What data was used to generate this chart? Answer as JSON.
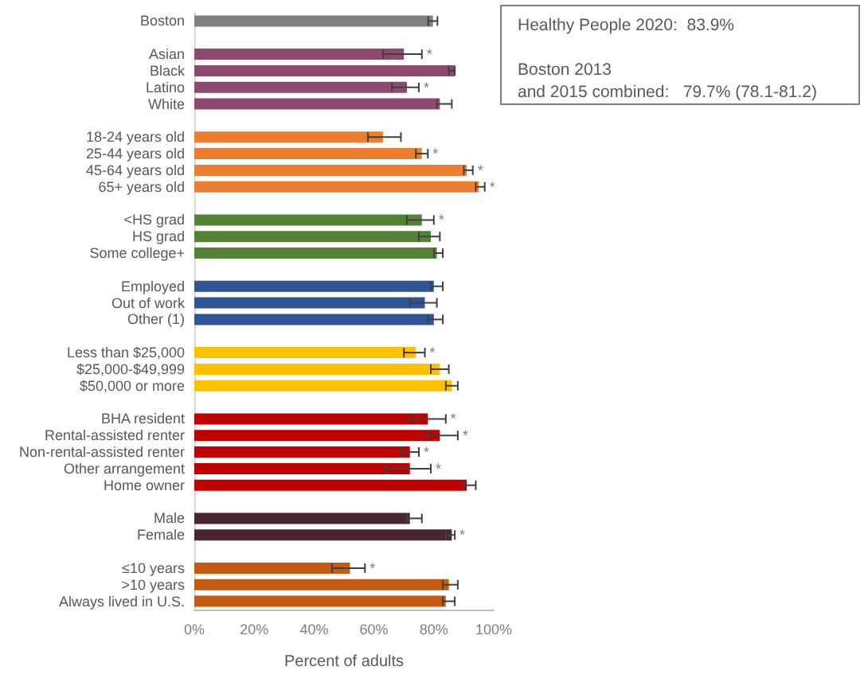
{
  "chart_data": {
    "type": "bar",
    "orientation": "horizontal",
    "xlabel": "Percent of adults",
    "categories": [
      "Boston",
      null,
      "Asian",
      "Black",
      "Latino",
      "White",
      null,
      "18-24 years old",
      "25-44 years old",
      "45-64 years old",
      "65+ years old",
      null,
      "<HS grad",
      "HS grad",
      "Some college+",
      null,
      "Employed",
      "Out of work",
      "Other (1)",
      null,
      "Less than $25,000",
      "$25,000-$49,999",
      "$50,000 or more",
      null,
      "BHA resident",
      "Rental-assisted renter",
      "Non-rental-assisted renter",
      "Other arrangement",
      "Home owner",
      null,
      "Male",
      "Female",
      null,
      "≤10 years",
      ">10 years",
      "Always lived in U.S."
    ],
    "values": [
      79.7,
      null,
      70,
      87,
      71,
      82,
      null,
      63,
      76,
      91,
      95,
      null,
      76,
      79,
      81,
      null,
      80,
      77,
      80,
      null,
      74,
      82,
      86,
      null,
      78,
      82,
      72,
      72,
      91,
      null,
      72,
      86,
      null,
      52,
      85,
      84
    ],
    "errors": [
      [
        78.1,
        81.2
      ],
      null,
      [
        63,
        76
      ],
      [
        85,
        87
      ],
      [
        66,
        75
      ],
      [
        81,
        86
      ],
      null,
      [
        58,
        69
      ],
      [
        74,
        78
      ],
      [
        90,
        93
      ],
      [
        94,
        97
      ],
      null,
      [
        71,
        80
      ],
      [
        75,
        82
      ],
      [
        80,
        83
      ],
      null,
      [
        79,
        83
      ],
      [
        72,
        81
      ],
      [
        78,
        83
      ],
      null,
      [
        70,
        77
      ],
      [
        79,
        85
      ],
      [
        84,
        88
      ],
      null,
      [
        72,
        84
      ],
      [
        78,
        88
      ],
      [
        69,
        75
      ],
      [
        64,
        79
      ],
      [
        90,
        94
      ],
      null,
      [
        71,
        76
      ],
      [
        84,
        87
      ],
      null,
      [
        46,
        57
      ],
      [
        83,
        88
      ],
      [
        83,
        87
      ]
    ],
    "colors": [
      "#7f7f7f",
      null,
      "#8e4a6e",
      "#8e4a6e",
      "#8e4a6e",
      "#8e4a6e",
      null,
      "#ed7d31",
      "#ed7d31",
      "#ed7d31",
      "#ed7d31",
      null,
      "#548235",
      "#548235",
      "#548235",
      null,
      "#2f5597",
      "#2f5597",
      "#2f5597",
      null,
      "#ffc000",
      "#ffc000",
      "#ffc000",
      null,
      "#c00000",
      "#c00000",
      "#c00000",
      "#c00000",
      "#c00000",
      null,
      "#4a2533",
      "#4a2533",
      null,
      "#c55a11",
      "#c55a11",
      "#c55a11"
    ],
    "xlim": [
      0,
      100
    ],
    "xticks": [
      {
        "value": 0,
        "label": "0%"
      },
      {
        "value": 20,
        "label": "20%"
      },
      {
        "value": 40,
        "label": "40%"
      },
      {
        "value": 60,
        "label": "60%"
      },
      {
        "value": 80,
        "label": "80%"
      },
      {
        "value": 100,
        "label": "100%"
      }
    ],
    "grid": false,
    "annotations": [
      "Healthy People 2020:  83.9%",
      "Boston 2013\nand 2015 combined:   79.7% (78.1-81.2)",
      {
        "text": "*",
        "x": 76,
        "y": "Asian"
      },
      {
        "text": "*",
        "x": 75,
        "y": "Latino"
      },
      {
        "text": "*",
        "x": 78,
        "y": "25-44 years old"
      },
      {
        "text": "*",
        "x": 93,
        "y": "45-64 years old"
      },
      {
        "text": "*",
        "x": 97,
        "y": "65+ years old"
      },
      {
        "text": "*",
        "x": 80,
        "y": "<HS grad"
      },
      {
        "text": "*",
        "x": 77,
        "y": "Less than $25,000"
      },
      {
        "text": "*",
        "x": 84,
        "y": "BHA resident"
      },
      {
        "text": "*",
        "x": 88,
        "y": "Rental-assisted renter"
      },
      {
        "text": "*",
        "x": 75,
        "y": "Non-rental-assisted renter"
      },
      {
        "text": "*",
        "x": 79,
        "y": "Other arrangement"
      },
      {
        "text": "*",
        "x": 87,
        "y": "Female"
      },
      {
        "text": "*",
        "x": 57,
        "y": "≤10 years"
      }
    ]
  }
}
